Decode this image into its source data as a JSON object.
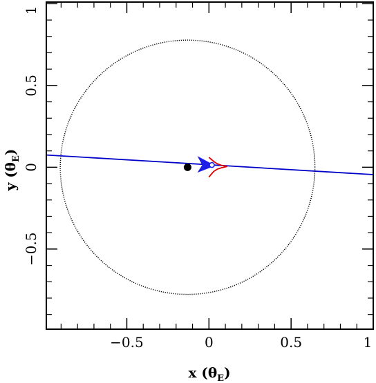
{
  "chart_data": {
    "type": "line",
    "title": "",
    "xlabel": {
      "main": "x",
      "symbol": "θ",
      "subscript": "E"
    },
    "ylabel": {
      "main": "y",
      "symbol": "θ",
      "subscript": "E"
    },
    "xlim": [
      -0.99,
      1.0
    ],
    "ylim": [
      -0.99,
      1.01
    ],
    "x_ticks": [
      {
        "v": -0.5,
        "label": "−0.5"
      },
      {
        "v": 0,
        "label": "0"
      },
      {
        "v": 0.5,
        "label": "0.5"
      },
      {
        "v": 1,
        "label": "1"
      }
    ],
    "y_ticks": [
      {
        "v": -0.5,
        "label": "−0.5"
      },
      {
        "v": 0,
        "label": "0"
      },
      {
        "v": 0.5,
        "label": "0.5"
      },
      {
        "v": 1,
        "label": "1"
      }
    ],
    "minor_tick_step": 0.1,
    "grid": false,
    "series": [
      {
        "kind": "circle",
        "center": [
          -0.13,
          0.0
        ],
        "radius": 0.775,
        "color": "#000000",
        "style": "dotted"
      },
      {
        "kind": "line",
        "points": [
          [
            -0.99,
            0.075
          ],
          [
            1.0,
            -0.045
          ]
        ],
        "color": "#0000c8"
      },
      {
        "kind": "caustic",
        "points": [
          [
            0.0,
            0.06
          ],
          [
            0.012,
            0.05
          ],
          [
            0.03,
            0.035
          ],
          [
            0.05,
            0.022
          ],
          [
            0.075,
            0.012
          ],
          [
            0.11,
            0.005
          ],
          [
            0.075,
            -0.004
          ],
          [
            0.05,
            -0.012
          ],
          [
            0.03,
            -0.025
          ],
          [
            0.012,
            -0.045
          ],
          [
            0.0,
            -0.06
          ]
        ],
        "color": "#dd0000"
      },
      {
        "kind": "lens",
        "position": [
          -0.13,
          0.0
        ],
        "color": "#000000"
      },
      {
        "kind": "source",
        "position": [
          -0.02,
          0.018
        ],
        "color": "#1e1ee6"
      }
    ]
  }
}
